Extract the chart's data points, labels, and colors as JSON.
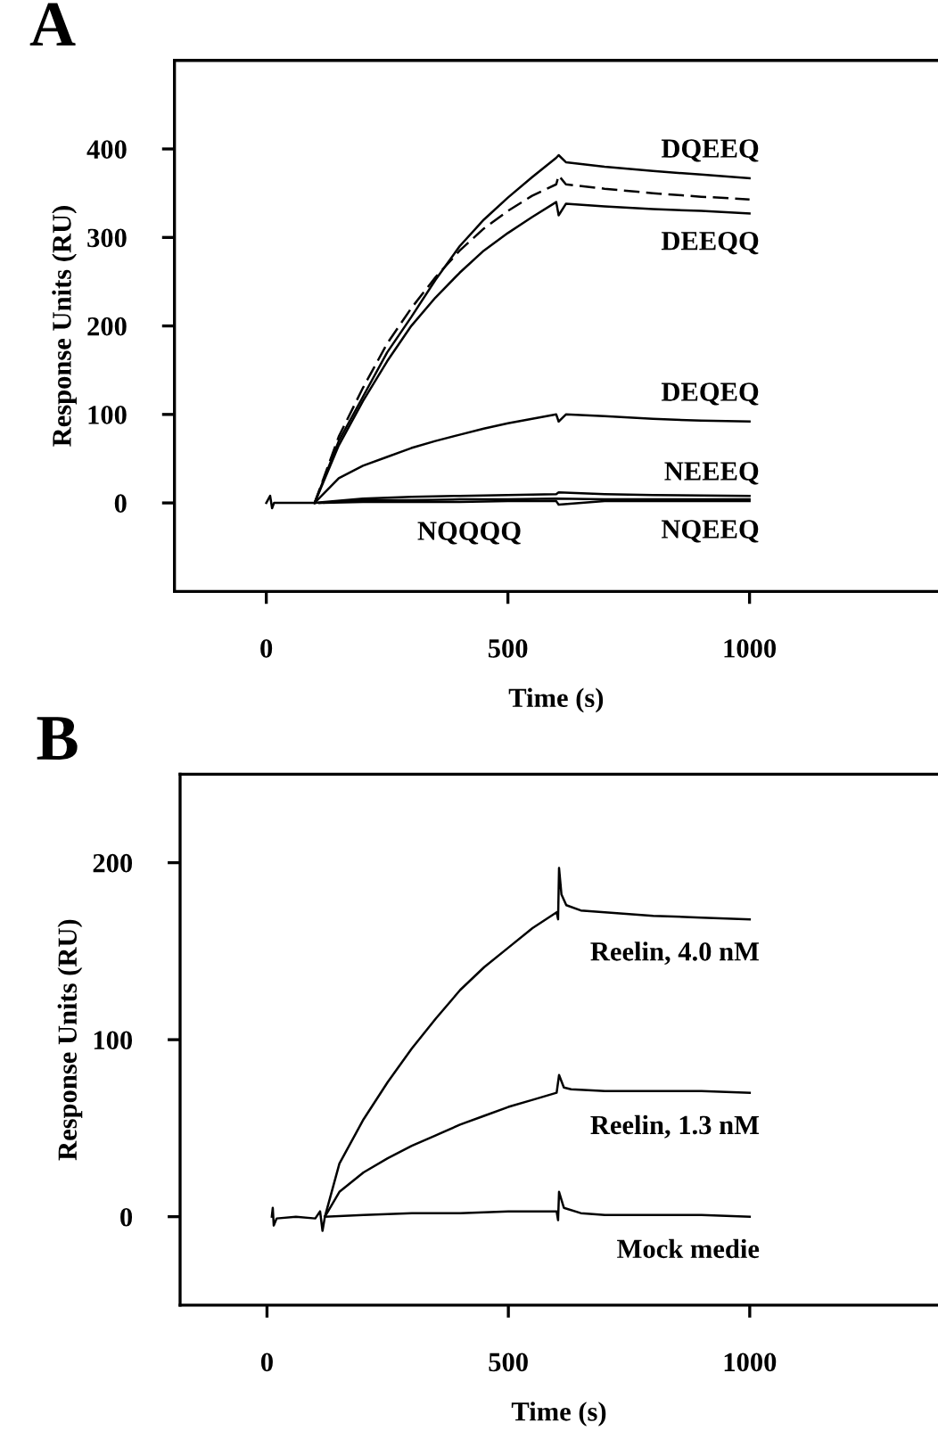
{
  "chart_data": [
    {
      "type": "line",
      "title": "A",
      "xlabel": "Time (s)",
      "ylabel": "Response Units (RU)",
      "xlim": [
        -190,
        1390
      ],
      "ylim": [
        -100,
        500
      ],
      "xticks": [
        0,
        500,
        1000
      ],
      "yticks": [
        0,
        100,
        200,
        300,
        400
      ],
      "grid": false,
      "legend": false,
      "marker": "none",
      "series": [
        {
          "name": "DQEEQ",
          "color": "#000000",
          "line_style": "solid",
          "x": [
            0,
            8,
            12,
            16,
            30,
            60,
            100,
            150,
            200,
            250,
            300,
            350,
            400,
            450,
            500,
            550,
            600,
            605,
            620,
            700,
            800,
            900,
            1000
          ],
          "values": [
            0,
            8,
            -6,
            0,
            0,
            0,
            0,
            70,
            120,
            170,
            210,
            252,
            290,
            320,
            345,
            368,
            390,
            393,
            385,
            380,
            375,
            371,
            367
          ]
        },
        {
          "color": "#000000",
          "line_style": "dashed",
          "x": [
            100,
            150,
            200,
            250,
            300,
            350,
            400,
            450,
            500,
            550,
            600,
            605,
            620,
            700,
            800,
            900,
            1000
          ],
          "values": [
            0,
            75,
            130,
            180,
            220,
            255,
            285,
            310,
            330,
            347,
            360,
            370,
            360,
            355,
            350,
            346,
            343
          ]
        },
        {
          "name": "DEEQQ",
          "color": "#000000",
          "line_style": "solid",
          "x": [
            100,
            150,
            200,
            250,
            300,
            350,
            400,
            450,
            500,
            550,
            600,
            605,
            620,
            700,
            800,
            900,
            1000
          ],
          "values": [
            0,
            65,
            115,
            160,
            200,
            232,
            260,
            285,
            305,
            323,
            340,
            325,
            338,
            335,
            332,
            330,
            327
          ]
        },
        {
          "name": "DEQEQ",
          "color": "#000000",
          "line_style": "solid",
          "x": [
            100,
            150,
            200,
            250,
            300,
            350,
            400,
            450,
            500,
            550,
            600,
            605,
            620,
            700,
            800,
            900,
            1000
          ],
          "values": [
            0,
            28,
            42,
            52,
            62,
            70,
            77,
            84,
            90,
            95,
            100,
            92,
            100,
            98,
            95,
            93,
            92
          ]
        },
        {
          "name": "NEEEQ",
          "color": "#000000",
          "line_style": "solid",
          "x": [
            100,
            200,
            300,
            400,
            500,
            600,
            605,
            700,
            800,
            1000
          ],
          "values": [
            0,
            5,
            7,
            8,
            9,
            10,
            12,
            10,
            9,
            8
          ]
        },
        {
          "name": "NQEEQ",
          "color": "#000000",
          "line_style": "solid",
          "x": [
            110,
            200,
            300,
            400,
            500,
            600,
            700,
            800,
            1000
          ],
          "values": [
            0,
            3,
            3,
            4,
            4,
            5,
            4,
            4,
            4
          ]
        },
        {
          "name": "NQQQQ",
          "color": "#000000",
          "line_style": "solid",
          "x": [
            120,
            200,
            300,
            400,
            500,
            600,
            605,
            700,
            800,
            1000
          ],
          "values": [
            0,
            1,
            1,
            1,
            2,
            2,
            -2,
            2,
            2,
            2
          ]
        }
      ]
    },
    {
      "type": "line",
      "title": "B",
      "xlabel": "Time (s)",
      "ylabel": "Response Units (RU)",
      "xlim": [
        -180,
        1390
      ],
      "ylim": [
        -50,
        250
      ],
      "xticks": [
        0,
        500,
        1000
      ],
      "yticks": [
        0,
        100,
        200
      ],
      "grid": false,
      "legend": false,
      "marker": "none",
      "series": [
        {
          "name": "Reelin, 4.0 nM",
          "color": "#000000",
          "line_style": "solid",
          "x": [
            10,
            12,
            14,
            20,
            60,
            100,
            110,
            115,
            120,
            150,
            200,
            250,
            300,
            350,
            400,
            450,
            500,
            550,
            600,
            603,
            605,
            610,
            620,
            650,
            700,
            800,
            900,
            1000
          ],
          "values": [
            0,
            5,
            -5,
            -1,
            0,
            -1,
            3,
            -8,
            0,
            30,
            55,
            76,
            95,
            112,
            128,
            141,
            152,
            163,
            172,
            168,
            197,
            182,
            176,
            173,
            172,
            170,
            169,
            168
          ]
        },
        {
          "name": "Reelin, 1.3 nM",
          "color": "#000000",
          "line_style": "solid",
          "x": [
            120,
            150,
            200,
            250,
            300,
            350,
            400,
            450,
            500,
            550,
            600,
            605,
            615,
            630,
            700,
            800,
            900,
            1000
          ],
          "values": [
            0,
            14,
            25,
            33,
            40,
            46,
            52,
            57,
            62,
            66,
            70,
            80,
            73,
            72,
            71,
            71,
            71,
            70
          ]
        },
        {
          "name": "Mock medie",
          "color": "#000000",
          "line_style": "solid",
          "x": [
            120,
            200,
            300,
            400,
            500,
            600,
            603,
            605,
            615,
            650,
            700,
            800,
            900,
            1000
          ],
          "values": [
            0,
            1,
            2,
            2,
            3,
            3,
            -2,
            14,
            5,
            2,
            1,
            1,
            1,
            0
          ]
        }
      ]
    }
  ]
}
